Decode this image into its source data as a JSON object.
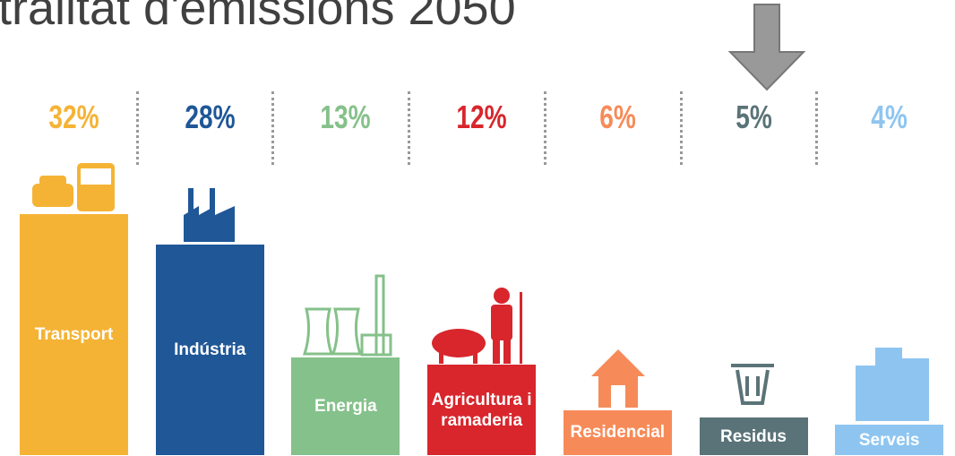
{
  "chart_data": {
    "type": "bar",
    "title": "tralitat d'emissions 2050",
    "categories": [
      "Transport",
      "Indústria",
      "Energia",
      "Agricultura i ramaderia",
      "Residencial",
      "Residus",
      "Serveis"
    ],
    "values": [
      32,
      28,
      13,
      12,
      6,
      5,
      4
    ],
    "value_labels": [
      "32%",
      "28%",
      "13%",
      "12%",
      "6%",
      "5%",
      "4%"
    ],
    "colors": [
      "#f5b335",
      "#1f5797",
      "#85c18a",
      "#d8262c",
      "#f68b59",
      "#5a7378",
      "#8ec5f0"
    ]
  }
}
